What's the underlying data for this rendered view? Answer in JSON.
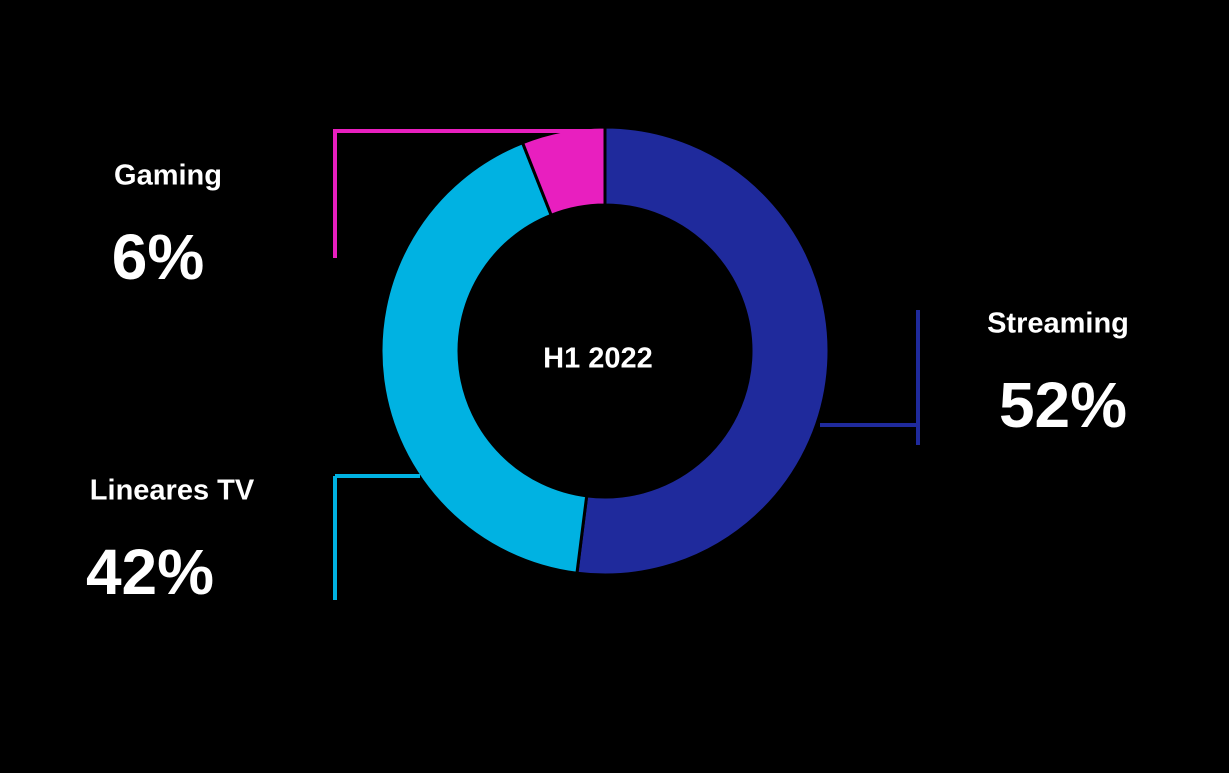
{
  "chart_data": {
    "type": "donut",
    "center_label": "H1 2022",
    "categories": [
      "Streaming",
      "Lineares TV",
      "Gaming"
    ],
    "values": [
      52,
      42,
      6
    ],
    "value_labels": [
      "52%",
      "42%",
      "6%"
    ],
    "colors": [
      "#1f2a9c",
      "#00b2e2",
      "#e81fbf"
    ]
  }
}
